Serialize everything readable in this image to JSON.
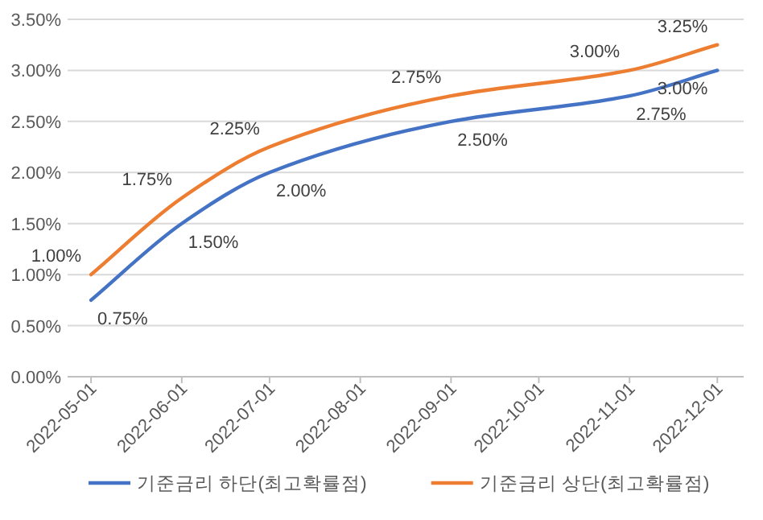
{
  "chart_data": {
    "type": "line",
    "x": [
      "2022-05-01",
      "2022-06-01",
      "2022-07-01",
      "2022-09-01",
      "2022-11-01",
      "2022-12-01"
    ],
    "series": [
      {
        "name": "기준금리 하단(최고확률점)",
        "color": "#4472c4",
        "values": [
          0.75,
          1.5,
          2.0,
          2.5,
          2.75,
          3.0
        ],
        "value_labels": [
          "0.75%",
          "1.50%",
          "2.00%",
          "2.50%",
          "2.75%",
          "3.00%"
        ]
      },
      {
        "name": "기준금리 상단(최고확률점)",
        "color": "#ed7d31",
        "values": [
          1.0,
          1.75,
          2.25,
          2.75,
          3.0,
          3.25
        ],
        "value_labels": [
          "1.00%",
          "1.75%",
          "2.25%",
          "2.75%",
          "3.00%",
          "3.25%"
        ]
      }
    ],
    "xlim": [
      "2022-04-23",
      "2022-12-10"
    ],
    "xticks": [
      {
        "value": "2022-05-01",
        "label": "2022-05-01"
      },
      {
        "value": "2022-06-01",
        "label": "2022-06-01"
      },
      {
        "value": "2022-07-01",
        "label": "2022-07-01"
      },
      {
        "value": "2022-08-01",
        "label": "2022-08-01"
      },
      {
        "value": "2022-09-01",
        "label": "2022-09-01"
      },
      {
        "value": "2022-10-01",
        "label": "2022-10-01"
      },
      {
        "value": "2022-11-01",
        "label": "2022-11-01"
      },
      {
        "value": "2022-12-01",
        "label": "2022-12-01"
      }
    ],
    "ylim": [
      0,
      3.5
    ],
    "yticks": [
      {
        "value": 0,
        "label": "0.00%"
      },
      {
        "value": 0.5,
        "label": "0.50%"
      },
      {
        "value": 1,
        "label": "1.00%"
      },
      {
        "value": 1.5,
        "label": "1.50%"
      },
      {
        "value": 2,
        "label": "2.00%"
      },
      {
        "value": 2.5,
        "label": "2.50%"
      },
      {
        "value": 3,
        "label": "3.00%"
      },
      {
        "value": 3.5,
        "label": "3.50%"
      }
    ],
    "grid": "y",
    "legend": "bottom",
    "marker": "none",
    "line_style": "solid"
  }
}
